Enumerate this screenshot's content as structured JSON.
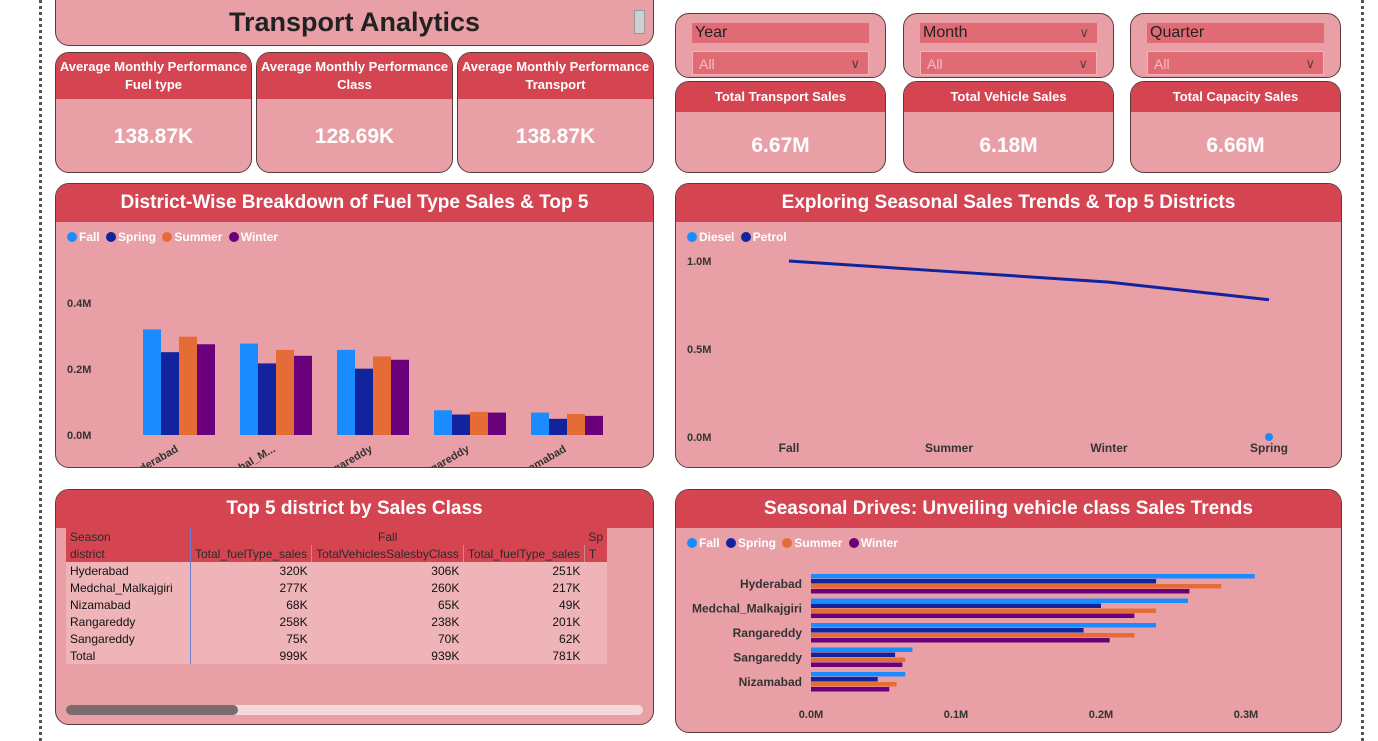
{
  "title": "Transport Analytics",
  "kpis_left": [
    {
      "label": "Average Monthly Performance Fuel type",
      "value": "138.87K"
    },
    {
      "label": "Average Monthly Performance Class",
      "value": "128.69K"
    },
    {
      "label": "Average Monthly Performance Transport",
      "value": "138.87K"
    }
  ],
  "slicers": [
    {
      "label": "Year",
      "value": "All"
    },
    {
      "label": "Month",
      "value": "All"
    },
    {
      "label": "Quarter",
      "value": "All"
    }
  ],
  "kpis_right": [
    {
      "label": "Total Transport Sales",
      "value": "6.67M"
    },
    {
      "label": "Total Vehicle Sales",
      "value": "6.18M"
    },
    {
      "label": "Total Capacity Sales",
      "value": "6.66M"
    }
  ],
  "colors": {
    "fall": "#1a8cff",
    "spring": "#12239e",
    "summer": "#e66c37",
    "winter": "#6b007b",
    "header": "#d54451",
    "panel": "#e8a0a6"
  },
  "chart_data": [
    {
      "type": "bar",
      "title": "District-Wise Breakdown of Fuel Type Sales & Top 5",
      "categories": [
        "Hyderabad",
        "Medchal_M...",
        "Rangareddy",
        "Sangareddy",
        "Nizamabad"
      ],
      "series": [
        {
          "name": "Fall",
          "values": [
            0.32,
            0.277,
            0.258,
            0.075,
            0.068
          ]
        },
        {
          "name": "Spring",
          "values": [
            0.251,
            0.217,
            0.201,
            0.062,
            0.049
          ]
        },
        {
          "name": "Summer",
          "values": [
            0.298,
            0.258,
            0.238,
            0.07,
            0.064
          ]
        },
        {
          "name": "Winter",
          "values": [
            0.275,
            0.24,
            0.228,
            0.068,
            0.058
          ]
        }
      ],
      "y_ticks": [
        "0.0M",
        "0.2M",
        "0.4M"
      ],
      "ylim": [
        0,
        0.4
      ]
    },
    {
      "type": "line",
      "title": "Exploring Seasonal Sales Trends & Top 5 Districts",
      "categories": [
        "Fall",
        "Summer",
        "Winter",
        "Spring"
      ],
      "series": [
        {
          "name": "Diesel",
          "values": [
            null,
            null,
            null,
            0.0
          ]
        },
        {
          "name": "Petrol",
          "values": [
            1.0,
            0.94,
            0.88,
            0.78
          ]
        }
      ],
      "y_ticks": [
        "0.0M",
        "0.5M",
        "1.0M"
      ],
      "ylim": [
        0,
        1.0
      ]
    },
    {
      "type": "table",
      "title": "Top 5 district by Sales Class",
      "season_label": "Season",
      "district_label": "district",
      "season_groups": [
        "Fall",
        "Sp"
      ],
      "columns": [
        "Total_fuelType_sales",
        "TotalVehiclesSalesbyClass",
        "Total_fuelType_sales",
        "T"
      ],
      "rows": [
        {
          "district": "Hyderabad",
          "values": [
            "320K",
            "306K",
            "251K"
          ]
        },
        {
          "district": "Medchal_Malkajgiri",
          "values": [
            "277K",
            "260K",
            "217K"
          ]
        },
        {
          "district": "Nizamabad",
          "values": [
            "68K",
            "65K",
            "49K"
          ]
        },
        {
          "district": "Rangareddy",
          "values": [
            "258K",
            "238K",
            "201K"
          ]
        },
        {
          "district": "Sangareddy",
          "values": [
            "75K",
            "70K",
            "62K"
          ]
        }
      ],
      "total": {
        "district": "Total",
        "values": [
          "999K",
          "939K",
          "781K"
        ]
      }
    },
    {
      "type": "bar",
      "orientation": "horizontal",
      "title": "Seasonal Drives: Unveiling vehicle class Sales Trends",
      "categories": [
        "Hyderabad",
        "Medchal_Malkajgiri",
        "Rangareddy",
        "Sangareddy",
        "Nizamabad"
      ],
      "series": [
        {
          "name": "Fall",
          "values": [
            0.306,
            0.26,
            0.238,
            0.07,
            0.065
          ]
        },
        {
          "name": "Spring",
          "values": [
            0.238,
            0.2,
            0.188,
            0.058,
            0.046
          ]
        },
        {
          "name": "Summer",
          "values": [
            0.283,
            0.238,
            0.223,
            0.065,
            0.059
          ]
        },
        {
          "name": "Winter",
          "values": [
            0.261,
            0.223,
            0.206,
            0.063,
            0.054
          ]
        }
      ],
      "x_ticks": [
        "0.0M",
        "0.1M",
        "0.2M",
        "0.3M"
      ],
      "xlim": [
        0,
        0.3
      ]
    }
  ]
}
